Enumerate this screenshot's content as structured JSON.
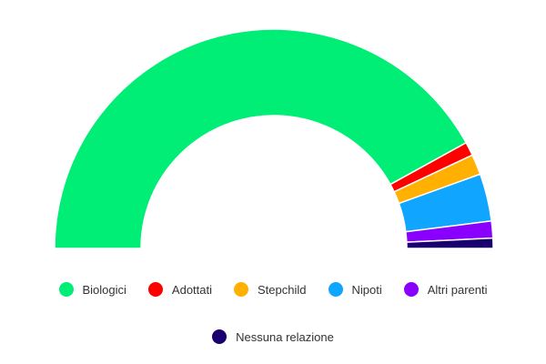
{
  "chart_data": {
    "type": "pie",
    "variant": "semicircle donut",
    "categories": [
      "Biologici",
      "Adottati",
      "Stepchild",
      "Nipoti",
      "Altri parenti",
      "Nessuna relazione"
    ],
    "values": [
      84.0,
      2.0,
      3.0,
      7.0,
      2.5,
      1.5
    ],
    "colors": [
      "#00ee76",
      "#ff0000",
      "#ffb000",
      "#10a6ff",
      "#8a00ff",
      "#1a006e"
    ],
    "legend_position": "bottom"
  }
}
